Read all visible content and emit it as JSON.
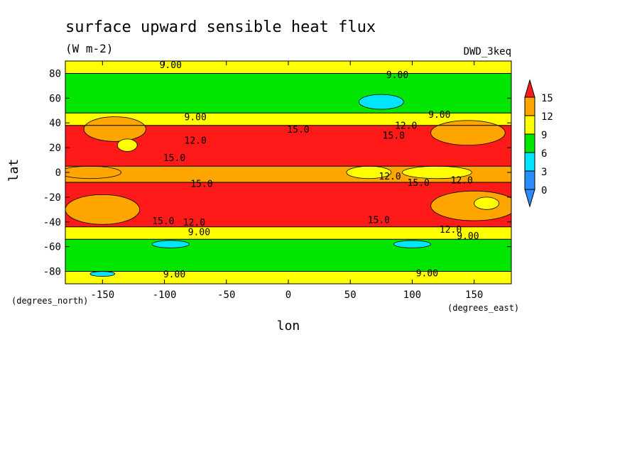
{
  "chart_data": {
    "type": "heatmap",
    "title": "surface upward sensible heat flux",
    "units": "(W m-2)",
    "dataset": "DWD_3keq",
    "xlabel": "lon",
    "ylabel": "lat",
    "x_units": "(degrees_east)",
    "y_units": "(degrees_north)",
    "xlim": [
      -180,
      180
    ],
    "ylim": [
      -90,
      90
    ],
    "x_ticks": [
      -150,
      -100,
      -50,
      0,
      50,
      100,
      150
    ],
    "y_ticks": [
      -80,
      -60,
      -40,
      -20,
      0,
      20,
      40,
      60,
      80
    ],
    "x_tick_labels": [
      "-150",
      "-100",
      "-50",
      "0",
      "50",
      "100",
      "150"
    ],
    "y_tick_labels": [
      "-80",
      "-60",
      "-40",
      "-20",
      "0",
      "20",
      "40",
      "60",
      "80"
    ],
    "colorbar": {
      "levels": [
        0,
        3,
        6,
        9,
        12,
        15
      ],
      "labels": [
        "0",
        "3",
        "6",
        "9",
        "12",
        "15"
      ],
      "colors": [
        "#2a8cff",
        "#00e5ff",
        "#00e600",
        "#ffff00",
        "#ffa500",
        "#ff1a1a"
      ]
    },
    "bands": [
      {
        "lat_min": 80,
        "lat_max": 90,
        "value_class": 9
      },
      {
        "lat_min": 48,
        "lat_max": 80,
        "value_class": 6
      },
      {
        "lat_min": 38,
        "lat_max": 48,
        "value_class": 9
      },
      {
        "lat_min": 5,
        "lat_max": 38,
        "value_class": 15
      },
      {
        "lat_min": -8,
        "lat_max": 5,
        "value_class": 12
      },
      {
        "lat_min": -44,
        "lat_max": -8,
        "value_class": 15
      },
      {
        "lat_min": -54,
        "lat_max": -44,
        "value_class": 9
      },
      {
        "lat_min": -80,
        "lat_max": -54,
        "value_class": 6
      },
      {
        "lat_min": -90,
        "lat_max": -80,
        "value_class": 9
      }
    ],
    "patches": [
      {
        "lon": -140,
        "lat": 35,
        "rlon": 25,
        "rlat": 10,
        "value_class": 12
      },
      {
        "lon": 145,
        "lat": 32,
        "rlon": 30,
        "rlat": 10,
        "value_class": 12
      },
      {
        "lon": -160,
        "lat": 0,
        "rlon": 25,
        "rlat": 5,
        "value_class": 12
      },
      {
        "lon": 150,
        "lat": -27,
        "rlon": 35,
        "rlat": 12,
        "value_class": 12
      },
      {
        "lon": -150,
        "lat": -30,
        "rlon": 30,
        "rlat": 12,
        "value_class": 12
      },
      {
        "lon": -130,
        "lat": 22,
        "rlon": 8,
        "rlat": 5,
        "value_class": 9
      },
      {
        "lon": 120,
        "lat": 0,
        "rlon": 28,
        "rlat": 5,
        "value_class": 9
      },
      {
        "lon": 65,
        "lat": 0,
        "rlon": 18,
        "rlat": 5,
        "value_class": 9
      },
      {
        "lon": 160,
        "lat": -25,
        "rlon": 10,
        "rlat": 5,
        "value_class": 9
      },
      {
        "lon": 75,
        "lat": 57,
        "rlon": 18,
        "rlat": 6,
        "value_class": 3
      },
      {
        "lon": -95,
        "lat": -58,
        "rlon": 15,
        "rlat": 3,
        "value_class": 3
      },
      {
        "lon": 100,
        "lat": -58,
        "rlon": 15,
        "rlat": 3,
        "value_class": 3
      },
      {
        "lon": -150,
        "lat": -82,
        "rlon": 10,
        "rlat": 2,
        "value_class": 3
      }
    ],
    "contour_labels": [
      {
        "text": "9.00",
        "lon": -95,
        "lat": 87
      },
      {
        "text": "9.00",
        "lon": 88,
        "lat": 79
      },
      {
        "text": "9.00",
        "lon": -75,
        "lat": 45
      },
      {
        "text": "9.00",
        "lon": 122,
        "lat": 47
      },
      {
        "text": "12.0",
        "lon": -75,
        "lat": 26
      },
      {
        "text": "12.0",
        "lon": 95,
        "lat": 38
      },
      {
        "text": "15.0",
        "lon": 8,
        "lat": 35
      },
      {
        "text": "15.0",
        "lon": 85,
        "lat": 30
      },
      {
        "text": "15.0",
        "lon": -92,
        "lat": 12
      },
      {
        "text": "12.0",
        "lon": 82,
        "lat": -3
      },
      {
        "text": "15.0",
        "lon": 105,
        "lat": -8
      },
      {
        "text": "12.0",
        "lon": 140,
        "lat": -6
      },
      {
        "text": "15.0",
        "lon": -70,
        "lat": -9
      },
      {
        "text": "15.0",
        "lon": 73,
        "lat": -38
      },
      {
        "text": "15.0",
        "lon": -101,
        "lat": -39
      },
      {
        "text": "12.0",
        "lon": -76,
        "lat": -40
      },
      {
        "text": "12.0",
        "lon": 131,
        "lat": -46
      },
      {
        "text": "9.00",
        "lon": -72,
        "lat": -48
      },
      {
        "text": "9.00",
        "lon": 145,
        "lat": -51
      },
      {
        "text": "9.00",
        "lon": -92,
        "lat": -82
      },
      {
        "text": "9.00",
        "lon": 112,
        "lat": -81
      }
    ]
  }
}
